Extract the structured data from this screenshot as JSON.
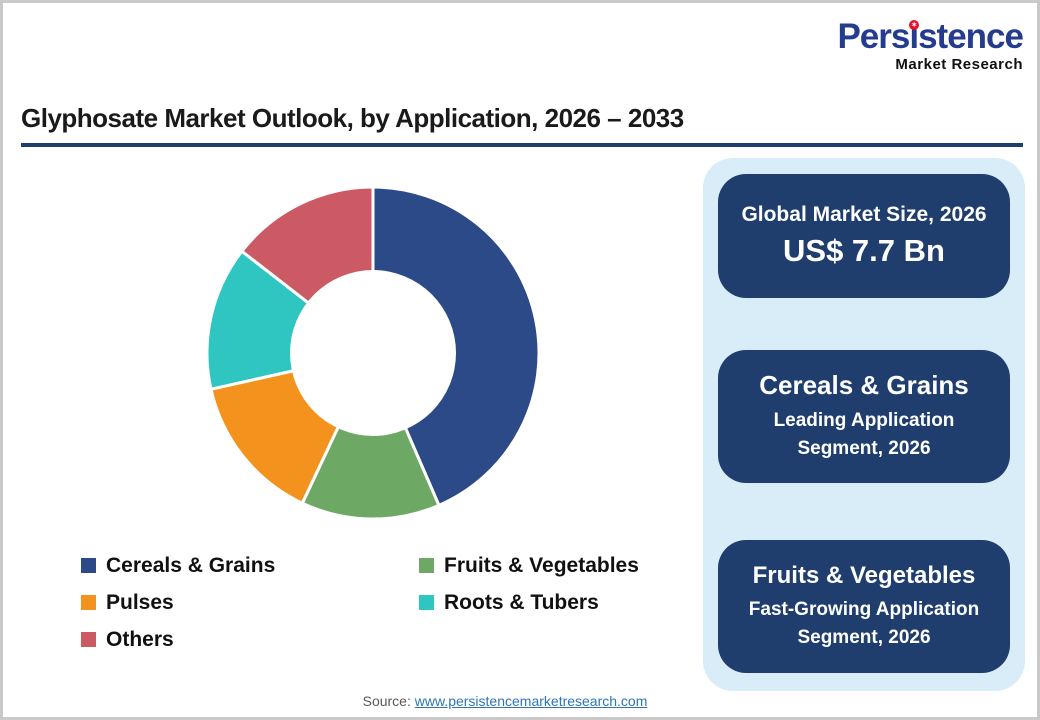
{
  "logo": {
    "brand_full": "Persistence",
    "brand_pre": "Pers",
    "brand_i": "ı",
    "brand_post": "stence",
    "sub": "Market Research",
    "star_glyph": "✶",
    "brand_color": "#253b8d",
    "dot_color": "#e8112d"
  },
  "title": "Glyphosate Market Outlook, by Application, 2026 – 2033",
  "chart_data": {
    "type": "pie",
    "subtype": "donut",
    "title": "Glyphosate Market Outlook, by Application, 2026 – 2033",
    "categories": [
      "Cereals & Grains",
      "Fruits & Vegetables",
      "Pulses",
      "Roots & Tubers",
      "Others"
    ],
    "values": [
      43.5,
      13.5,
      14.5,
      14.0,
      14.5
    ],
    "values_note": "percent shares estimated from arc angles; no data labels shown in image",
    "colors": [
      "#2b4a87",
      "#6da865",
      "#f3921d",
      "#2fc5c1",
      "#cc5a64"
    ],
    "start_angle_deg": 0,
    "direction": "clockwise",
    "donut_hole_ratio": 0.5,
    "separator_color": "#ffffff",
    "legend_position": "bottom-left",
    "legend_order_column_major": [
      0,
      2,
      4,
      1,
      3
    ],
    "legend_rows": 3
  },
  "sidebar": {
    "cards": [
      {
        "line1": "Global Market Size, 2026",
        "line2": "US$ 7.7 Bn"
      },
      {
        "title": "Cereals & Grains",
        "sub_line1": "Leading Application",
        "sub_line2": "Segment, 2026"
      },
      {
        "title": "Fruits & Vegetables",
        "sub_line1": "Fast-Growing Application",
        "sub_line2": "Segment, 2026"
      }
    ],
    "panel_color": "#d9edf9",
    "card_color": "#1f3e6e"
  },
  "source": {
    "label": "Source:",
    "link": "www.persistencemarketresearch.com"
  }
}
